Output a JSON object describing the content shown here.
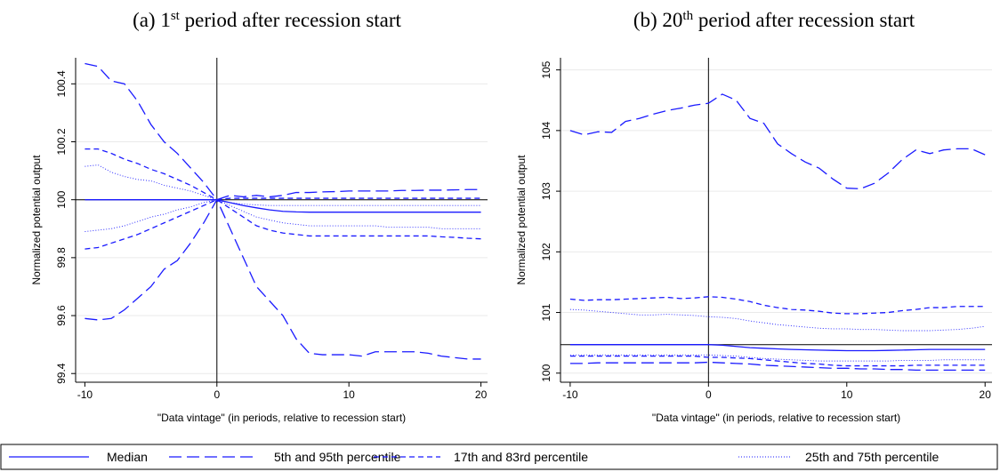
{
  "chart_data": [
    {
      "type": "line",
      "title": [
        "(a) 1",
        "st",
        " period after recession start"
      ],
      "ylabel": "Normalized potential output",
      "xlabel": "\"Data vintage\" (in periods, relative to recession start)",
      "x": [
        -10,
        -9,
        -8,
        -7,
        -6,
        -5,
        -4,
        -3,
        -2,
        -1,
        0,
        1,
        2,
        3,
        4,
        5,
        6,
        7,
        8,
        9,
        10,
        11,
        12,
        13,
        14,
        15,
        16,
        17,
        18,
        19,
        20
      ],
      "xlim": [
        -10.7,
        20.5
      ],
      "xticks": [
        -10,
        0,
        10,
        20
      ],
      "ylim": [
        99.37,
        100.49
      ],
      "yticks": [
        99.4,
        99.6,
        99.8,
        100,
        100.2,
        100.4
      ],
      "grid": true,
      "hline": 100,
      "vline": 0,
      "color": "#1a1aff",
      "series": [
        {
          "name": "Median",
          "dash": "solid",
          "values": [
            100,
            100,
            100,
            100,
            100,
            100,
            100,
            100,
            100,
            100,
            100,
            99.99,
            99.98,
            99.972,
            99.965,
            99.96,
            99.958,
            99.957,
            99.957,
            99.957,
            99.957,
            99.957,
            99.957,
            99.957,
            99.957,
            99.957,
            99.957,
            99.957,
            99.957,
            99.957,
            99.957
          ]
        },
        {
          "name": "5th and 95th percentile",
          "dash": "longdash",
          "lower": [
            99.59,
            99.585,
            99.59,
            99.62,
            99.66,
            99.7,
            99.76,
            99.79,
            99.85,
            99.92,
            100,
            99.9,
            99.8,
            99.7,
            99.65,
            99.6,
            99.52,
            99.47,
            99.465,
            99.465,
            99.465,
            99.46,
            99.475,
            99.475,
            99.475,
            99.475,
            99.47,
            99.46,
            99.455,
            99.45,
            99.45
          ],
          "upper": [
            100.47,
            100.46,
            100.41,
            100.4,
            100.34,
            100.26,
            100.2,
            100.16,
            100.11,
            100.06,
            100,
            100.015,
            100.01,
            100.015,
            100.01,
            100.015,
            100.025,
            100.025,
            100.027,
            100.028,
            100.03,
            100.03,
            100.03,
            100.03,
            100.032,
            100.032,
            100.033,
            100.033,
            100.034,
            100.035,
            100.035
          ]
        },
        {
          "name": "17th and 83rd percentile",
          "dash": "dash",
          "lower": [
            99.83,
            99.835,
            99.85,
            99.865,
            99.88,
            99.9,
            99.92,
            99.94,
            99.96,
            99.98,
            100,
            99.97,
            99.94,
            99.91,
            99.895,
            99.885,
            99.88,
            99.875,
            99.875,
            99.875,
            99.875,
            99.875,
            99.875,
            99.875,
            99.875,
            99.875,
            99.875,
            99.872,
            99.87,
            99.867,
            99.865
          ],
          "upper": [
            100.175,
            100.175,
            100.16,
            100.14,
            100.125,
            100.105,
            100.09,
            100.07,
            100.05,
            100.025,
            100,
            100.005,
            100.005,
            100.005,
            100.005,
            100.005,
            100.005,
            100.005,
            100.005,
            100.005,
            100.005,
            100.005,
            100.005,
            100.005,
            100.005,
            100.005,
            100.005,
            100.005,
            100.005,
            100.005,
            100.005
          ]
        },
        {
          "name": "25th and 75th percentile",
          "dash": "dot",
          "lower": [
            99.89,
            99.895,
            99.9,
            99.91,
            99.925,
            99.94,
            99.95,
            99.965,
            99.975,
            99.99,
            100,
            99.98,
            99.96,
            99.94,
            99.93,
            99.92,
            99.915,
            99.91,
            99.91,
            99.91,
            99.91,
            99.91,
            99.91,
            99.905,
            99.905,
            99.905,
            99.905,
            99.9,
            99.9,
            99.9,
            99.9
          ],
          "upper": [
            100.115,
            100.12,
            100.095,
            100.08,
            100.07,
            100.065,
            100.05,
            100.04,
            100.03,
            100.015,
            100,
            99.99,
            99.985,
            99.982,
            99.98,
            99.98,
            99.98,
            99.98,
            99.98,
            99.98,
            99.98,
            99.98,
            99.98,
            99.98,
            99.98,
            99.98,
            99.98,
            99.98,
            99.98,
            99.98,
            99.98
          ]
        }
      ]
    },
    {
      "type": "line",
      "title": [
        "(b) 20",
        "th",
        " period after recession start"
      ],
      "ylabel": "Normalized potential output",
      "xlabel": "\"Data vintage\" (in periods, relative to recession start)",
      "x": [
        -10,
        -9,
        -8,
        -7,
        -6,
        -5,
        -4,
        -3,
        -2,
        -1,
        0,
        1,
        2,
        3,
        4,
        5,
        6,
        7,
        8,
        9,
        10,
        11,
        12,
        13,
        14,
        15,
        16,
        17,
        18,
        19,
        20
      ],
      "xlim": [
        -10.7,
        20.5
      ],
      "xticks": [
        -10,
        0,
        10,
        20
      ],
      "ylim": [
        99.85,
        105.2
      ],
      "yticks": [
        100,
        101,
        102,
        103,
        104,
        105
      ],
      "grid": true,
      "hline": 100.47,
      "vline": 0,
      "color": "#1a1aff",
      "series": [
        {
          "dash": "solid",
          "values": [
            100.47,
            100.47,
            100.47,
            100.47,
            100.47,
            100.47,
            100.47,
            100.47,
            100.47,
            100.47,
            100.47,
            100.46,
            100.44,
            100.42,
            100.41,
            100.4,
            100.39,
            100.385,
            100.38,
            100.375,
            100.37,
            100.37,
            100.37,
            100.375,
            100.38,
            100.385,
            100.39,
            100.39,
            100.39,
            100.39,
            100.39
          ]
        },
        {
          "dash": "longdash",
          "lower": [
            100.16,
            100.16,
            100.17,
            100.17,
            100.17,
            100.17,
            100.17,
            100.17,
            100.17,
            100.17,
            100.18,
            100.17,
            100.16,
            100.15,
            100.13,
            100.12,
            100.11,
            100.1,
            100.09,
            100.08,
            100.08,
            100.07,
            100.07,
            100.06,
            100.06,
            100.05,
            100.05,
            100.05,
            100.05,
            100.05,
            100.05
          ],
          "upper": [
            104.0,
            103.93,
            103.98,
            103.97,
            104.15,
            104.2,
            104.27,
            104.33,
            104.37,
            104.42,
            104.45,
            104.6,
            104.5,
            104.2,
            104.12,
            103.78,
            103.62,
            103.48,
            103.38,
            103.2,
            103.05,
            103.04,
            103.13,
            103.3,
            103.52,
            103.68,
            103.62,
            103.68,
            103.7,
            103.7,
            103.6
          ]
        },
        {
          "dash": "dash",
          "lower": [
            100.28,
            100.28,
            100.28,
            100.28,
            100.28,
            100.28,
            100.28,
            100.28,
            100.28,
            100.28,
            100.26,
            100.26,
            100.25,
            100.24,
            100.22,
            100.2,
            100.18,
            100.16,
            100.15,
            100.13,
            100.12,
            100.12,
            100.12,
            100.12,
            100.12,
            100.13,
            100.13,
            100.13,
            100.13,
            100.13,
            100.13
          ],
          "upper": [
            101.22,
            101.2,
            101.21,
            101.21,
            101.22,
            101.23,
            101.24,
            101.25,
            101.23,
            101.24,
            101.26,
            101.25,
            101.22,
            101.18,
            101.12,
            101.08,
            101.05,
            101.04,
            101.02,
            100.99,
            100.98,
            100.98,
            100.99,
            101.0,
            101.03,
            101.05,
            101.08,
            101.08,
            101.1,
            101.1,
            101.1
          ]
        },
        {
          "dash": "dot",
          "lower": [
            100.3,
            100.3,
            100.3,
            100.3,
            100.3,
            100.3,
            100.3,
            100.3,
            100.3,
            100.3,
            100.3,
            100.29,
            100.28,
            100.26,
            100.24,
            100.23,
            100.22,
            100.21,
            100.2,
            100.2,
            100.2,
            100.2,
            100.2,
            100.2,
            100.21,
            100.21,
            100.21,
            100.22,
            100.22,
            100.22,
            100.22
          ],
          "upper": [
            101.05,
            101.04,
            101.02,
            101.0,
            100.98,
            100.96,
            100.96,
            100.97,
            100.96,
            100.95,
            100.93,
            100.92,
            100.9,
            100.86,
            100.83,
            100.8,
            100.78,
            100.76,
            100.74,
            100.73,
            100.73,
            100.72,
            100.72,
            100.71,
            100.7,
            100.7,
            100.7,
            100.71,
            100.72,
            100.74,
            100.77
          ]
        }
      ]
    }
  ]
}
